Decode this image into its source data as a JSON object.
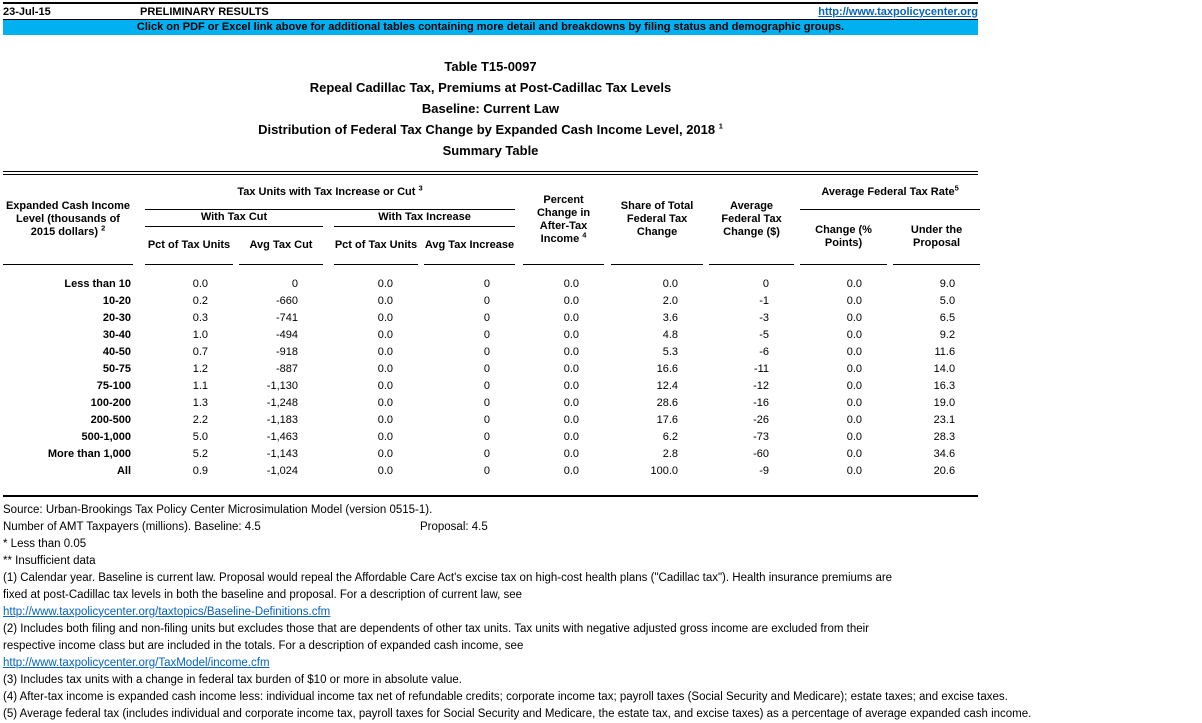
{
  "colors": {
    "banner_cyan": "#00B0F0",
    "link_blue": "#0563C1",
    "text": "#000000"
  },
  "topbar": {
    "date": "23-Jul-15",
    "status": "PRELIMINARY RESULTS",
    "link": "http://www.taxpolicycenter.org"
  },
  "banner": {
    "text": "Click on PDF or Excel link above for additional tables containing more detail and breakdowns by filing status and demographic groups."
  },
  "title": {
    "line1": "Table T15-0097",
    "line2": "Repeal Cadillac Tax, Premiums at Post-Cadillac Tax Levels",
    "line3": "Baseline: Current Law",
    "line4": "Distribution of Federal Tax Change by Expanded Cash Income Level, 2018",
    "line4_sup": "1",
    "line5": "Summary Table"
  },
  "table": {
    "headers": {
      "income_level": "Expanded Cash Income Level (thousands of 2015 dollars)",
      "income_level_sup": "2",
      "tax_units_group": "Tax Units with Tax Increase or Cut",
      "tax_units_group_sup": "3",
      "with_tax_cut": "With Tax Cut",
      "with_tax_increase": "With Tax Increase",
      "pct_of_tax_units_cut": "Pct of Tax Units",
      "avg_tax_cut": "Avg Tax Cut",
      "pct_of_tax_units_increase": "Pct of Tax Units",
      "avg_tax_increase": "Avg Tax Increase",
      "pct_change_after_tax_income": "Percent Change in After-Tax Income",
      "pct_change_after_tax_income_sup": "4",
      "share_total_federal_tax_change": "Share of Total Federal Tax Change",
      "avg_federal_tax_change": "Average Federal Tax Change ($)",
      "avg_federal_tax_rate_group": "Average Federal Tax Rate",
      "avg_federal_tax_rate_group_sup": "5",
      "change_pct_points": "Change (% Points)",
      "under_the_proposal": "Under the Proposal"
    },
    "rows": [
      [
        "Less than 10",
        "0.0",
        "0",
        "0.0",
        "0",
        "0.0",
        "0.0",
        "0",
        "0.0",
        "9.0"
      ],
      [
        "10-20",
        "0.2",
        "-660",
        "0.0",
        "0",
        "0.0",
        "2.0",
        "-1",
        "0.0",
        "5.0"
      ],
      [
        "20-30",
        "0.3",
        "-741",
        "0.0",
        "0",
        "0.0",
        "3.6",
        "-3",
        "0.0",
        "6.5"
      ],
      [
        "30-40",
        "1.0",
        "-494",
        "0.0",
        "0",
        "0.0",
        "4.8",
        "-5",
        "0.0",
        "9.2"
      ],
      [
        "40-50",
        "0.7",
        "-918",
        "0.0",
        "0",
        "0.0",
        "5.3",
        "-6",
        "0.0",
        "11.6"
      ],
      [
        "50-75",
        "1.2",
        "-887",
        "0.0",
        "0",
        "0.0",
        "16.6",
        "-11",
        "0.0",
        "14.0"
      ],
      [
        "75-100",
        "1.1",
        "-1,130",
        "0.0",
        "0",
        "0.0",
        "12.4",
        "-12",
        "0.0",
        "16.3"
      ],
      [
        "100-200",
        "1.3",
        "-1,248",
        "0.0",
        "0",
        "0.0",
        "28.6",
        "-16",
        "0.0",
        "19.0"
      ],
      [
        "200-500",
        "2.2",
        "-1,183",
        "0.0",
        "0",
        "0.0",
        "17.6",
        "-26",
        "0.0",
        "23.1"
      ],
      [
        "500-1,000",
        "5.0",
        "-1,463",
        "0.0",
        "0",
        "0.0",
        "6.2",
        "-73",
        "0.0",
        "28.3"
      ],
      [
        "More than 1,000",
        "5.2",
        "-1,143",
        "0.0",
        "0",
        "0.0",
        "2.8",
        "-60",
        "0.0",
        "34.6"
      ],
      [
        "All",
        "0.9",
        "-1,024",
        "0.0",
        "0",
        "0.0",
        "100.0",
        "-9",
        "0.0",
        "20.6"
      ]
    ]
  },
  "footer": {
    "source": "Source: Urban-Brookings Tax Policy Center Microsimulation Model (version 0515-1).",
    "amt_label": "Number of AMT Taxpayers (millions).  Baseline: 4.5",
    "amt_proposal": "Proposal: 4.5",
    "star1": "* Less than 0.05",
    "star2": "** Insufficient data",
    "note1_line1": "(1) Calendar year. Baseline is current law. Proposal would repeal the Affordable Care Act's excise tax on high-cost health plans (\"Cadillac tax\").  Health insurance premiums are",
    "note1_line2": "fixed at post-Cadillac tax levels in both the baseline and proposal. For a description of current law, see",
    "link1": "http://www.taxpolicycenter.org/taxtopics/Baseline-Definitions.cfm",
    "note2_line1": "(2) Includes both filing and non-filing units but excludes those that are dependents of other tax units. Tax units with negative adjusted gross income are excluded from their",
    "note2_line2": "respective income class but are included in the totals. For a description of expanded cash income, see",
    "link2": "http://www.taxpolicycenter.org/TaxModel/income.cfm",
    "note3": "(3) Includes tax units with a change in federal tax burden of $10 or more in absolute value.",
    "note4": "(4) After-tax income is expanded cash income less: individual income tax net of refundable credits; corporate income tax; payroll taxes (Social Security and Medicare); estate taxes; and excise taxes.",
    "note5": "(5) Average federal tax (includes individual and corporate income tax, payroll taxes for Social Security and Medicare, the estate tax, and excise taxes) as a percentage of average expanded cash income."
  }
}
